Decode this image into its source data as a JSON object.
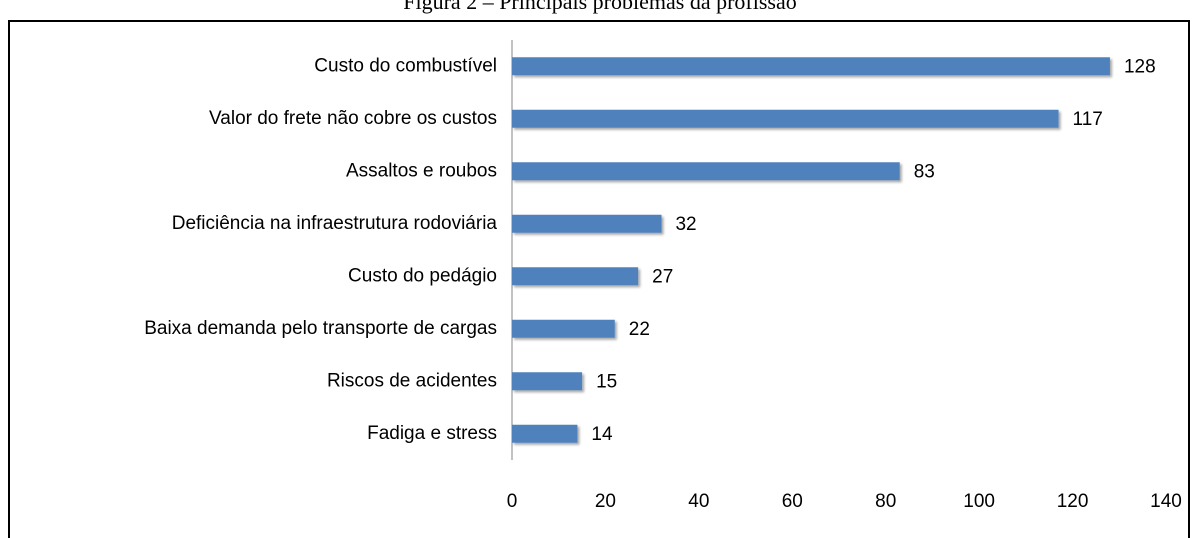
{
  "chart_data": {
    "type": "barh",
    "title": "Figura 2 – Principais problemas da profissão",
    "categories": [
      "Custo do combustível",
      "Valor do frete não cobre os custos",
      "Assaltos e roubos",
      "Deficiência na infraestrutura rodoviária",
      "Custo do pedágio",
      "Baixa demanda pelo transporte de cargas",
      "Riscos de acidentes",
      "Fadiga e stress"
    ],
    "values": [
      128,
      117,
      83,
      32,
      27,
      22,
      15,
      14
    ],
    "color": "#4f81bd",
    "xlim": [
      0,
      140
    ],
    "xticks": [
      0,
      20,
      40,
      60,
      80,
      100,
      120,
      140
    ],
    "grid": false
  }
}
